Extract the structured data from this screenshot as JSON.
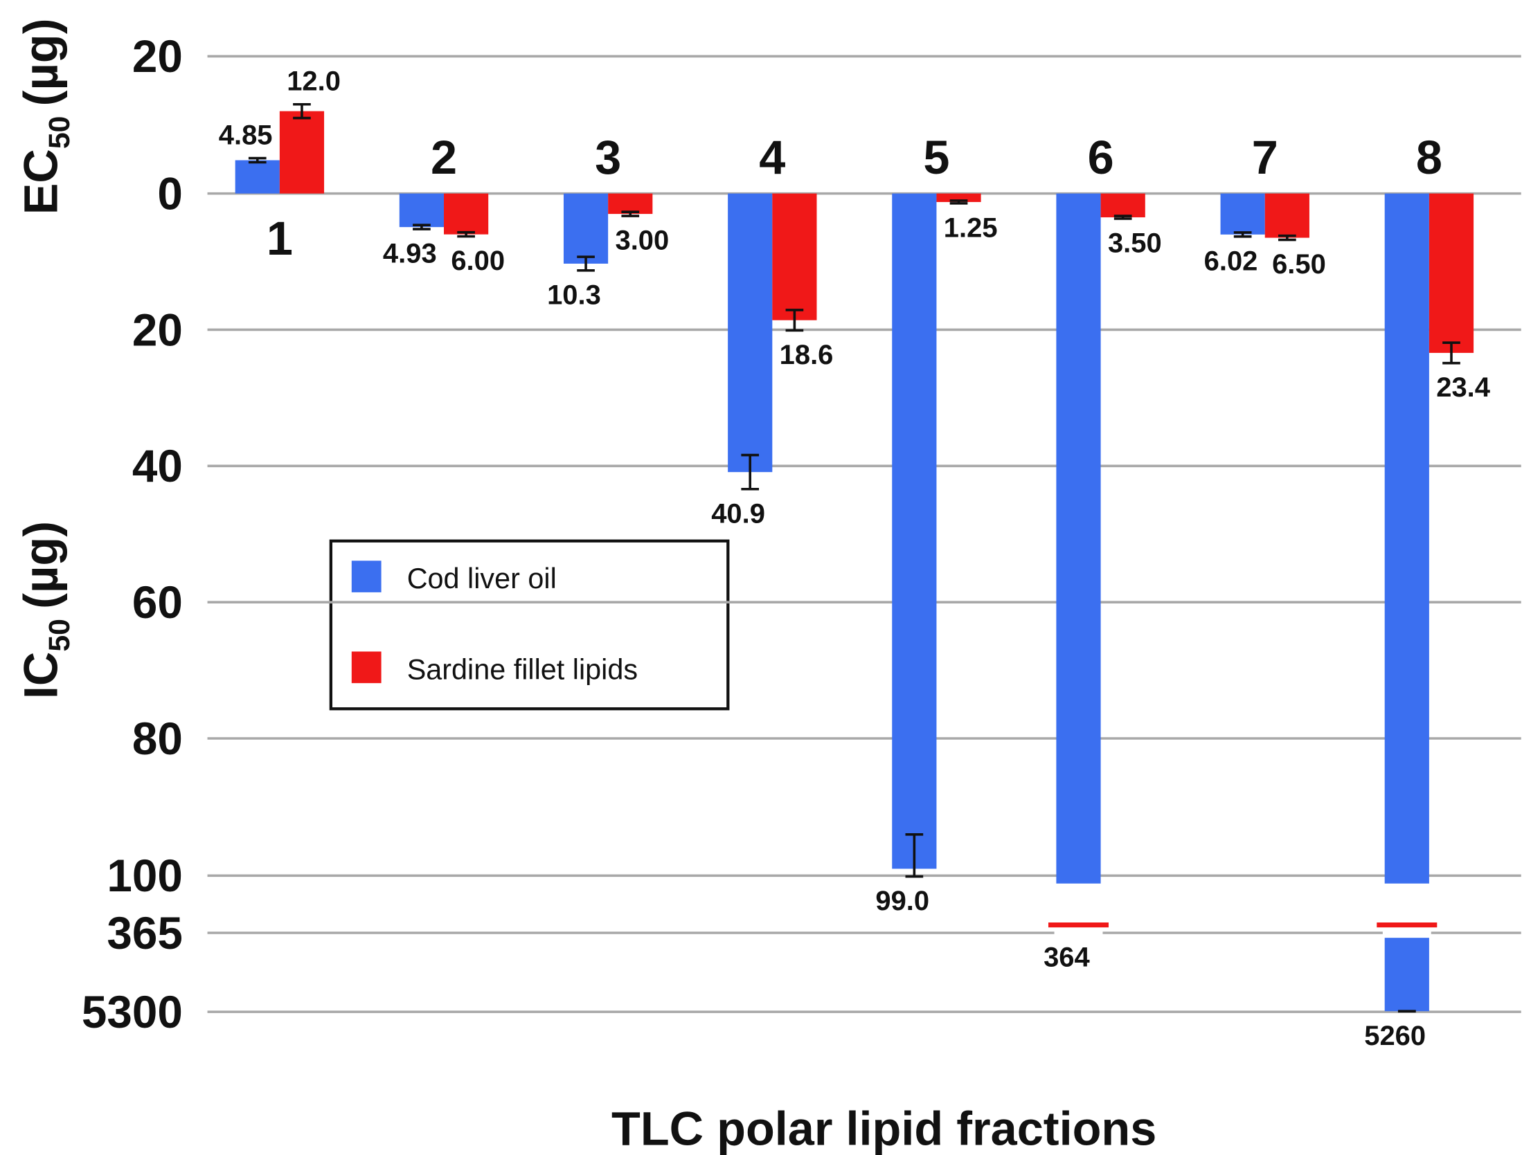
{
  "chart_data": {
    "type": "bar",
    "x_label": "TLC polar lipid fractions",
    "y_label_top": {
      "main": "EC",
      "sub": "50",
      "unit": "(µg)"
    },
    "y_label_bottom": {
      "main": "IC",
      "sub": "50",
      "unit": "(µg)"
    },
    "categories": [
      "1",
      "2",
      "3",
      "4",
      "5",
      "6",
      "7",
      "8"
    ],
    "series": [
      {
        "name": "Cod liver oil",
        "color": "#3b6ff0",
        "values": [
          4.85,
          -4.93,
          -10.3,
          -40.9,
          -99.0,
          -364,
          -6.02,
          -5260
        ],
        "value_labels": [
          "4.85",
          "4.93",
          "10.3",
          "40.9",
          "99.0",
          "364",
          "6.02",
          "5260"
        ],
        "errors": [
          0.3,
          0.3,
          1,
          2.5,
          5,
          5,
          0.3,
          5
        ]
      },
      {
        "name": "Sardine fillet lipids",
        "color": "#f01818",
        "values": [
          12.0,
          -6.0,
          -3.0,
          -18.6,
          -1.25,
          -3.5,
          -6.5,
          -23.4
        ],
        "value_labels": [
          "12.0",
          "6.00",
          "3.00",
          "18.6",
          "1.25",
          "3.50",
          "6.50",
          "23.4"
        ],
        "errors": [
          1,
          0.3,
          0.3,
          1.5,
          0.2,
          0.2,
          0.3,
          1.5
        ]
      }
    ],
    "ylim": [
      -5300,
      20
    ],
    "yticks": [
      20,
      0,
      {
        "value": -20,
        "label": "20"
      },
      {
        "value": -40,
        "label": "40"
      },
      {
        "value": -60,
        "label": "60"
      },
      {
        "value": -80,
        "label": "80"
      },
      {
        "value": -100,
        "label": "100"
      },
      {
        "value": -365,
        "label": "365"
      },
      {
        "value": -5300,
        "label": "5300"
      }
    ],
    "grid": true
  }
}
